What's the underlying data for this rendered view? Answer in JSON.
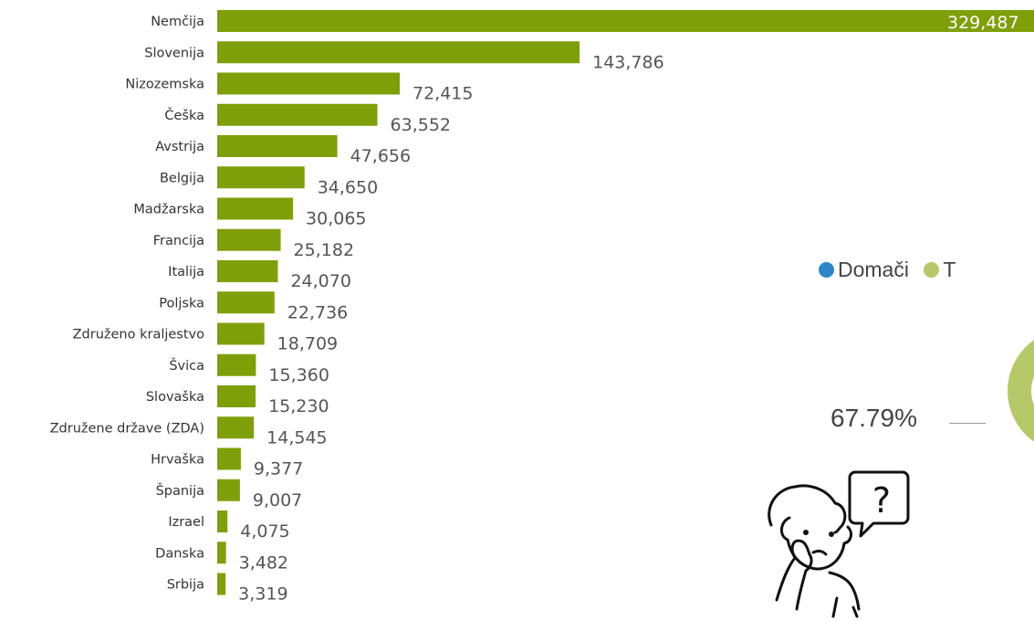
{
  "chart_data": [
    {
      "type": "bar",
      "orientation": "horizontal",
      "categories": [
        "Nemčija",
        "Slovenija",
        "Nizozemska",
        "Češka",
        "Avstrija",
        "Belgija",
        "Madžarska",
        "Francija",
        "Italija",
        "Poljska",
        "Združeno kraljestvo",
        "Švica",
        "Slovaška",
        "Združene države (ZDA)",
        "Hrvaška",
        "Španija",
        "Izrael",
        "Danska",
        "Srbija"
      ],
      "values": [
        329487,
        143786,
        72415,
        63552,
        47656,
        34650,
        30065,
        25182,
        24070,
        22736,
        18709,
        15360,
        15230,
        14545,
        9377,
        9007,
        4075,
        3482,
        3319
      ],
      "value_labels": [
        "329,487",
        "143,786",
        "72,415",
        "63,552",
        "47,656",
        "34,650",
        "30,065",
        "25,182",
        "24,070",
        "22,736",
        "18,709",
        "15,360",
        "15,230",
        "14,545",
        "9,377",
        "9,007",
        "4,075",
        "3,482",
        "3,319"
      ],
      "bar_color": "#7f9f0a",
      "grid": false
    },
    {
      "type": "pie",
      "variant": "donut",
      "legend": [
        {
          "name": "Domači",
          "color": "#2e86c8"
        },
        {
          "name": "T",
          "color": "#b5c96a"
        }
      ],
      "legend_placement": "top",
      "label": "67.79%",
      "value": 67.79
    }
  ],
  "illustration": {
    "name": "thinking-person-with-question-bubble",
    "symbol": "?"
  }
}
